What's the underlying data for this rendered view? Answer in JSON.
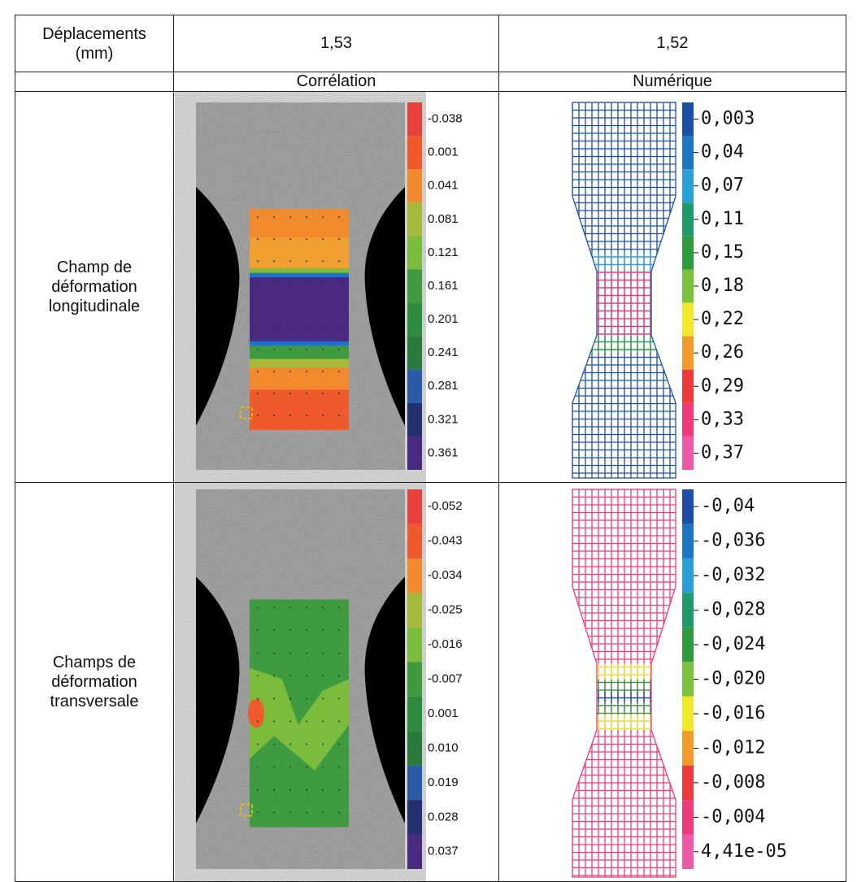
{
  "table": {
    "header": [
      "Déplacements (mm)",
      "1,53",
      "1,52"
    ],
    "subheader": [
      "Corrélation",
      "Numérique"
    ],
    "rows": [
      {
        "label": "Champ de déformation longitudinale",
        "correlation_legend": [
          "-0.038",
          "0.001",
          "0.041",
          "0.081",
          "0.121",
          "0.161",
          "0.201",
          "0.241",
          "0.281",
          "0.321",
          "0.361"
        ],
        "correlation_colors": [
          "#e8413c",
          "#ee5a2c",
          "#f08a2c",
          "#a8b83a",
          "#7cbc3c",
          "#3f9b3f",
          "#2e8a3e",
          "#2a7a3c",
          "#2a5aa8",
          "#22306e",
          "#4a2a80"
        ],
        "numeric_legend": [
          "0,003",
          "0,04",
          "0,07",
          "0,11",
          "0,15",
          "0,18",
          "0,22",
          "0,26",
          "0,29",
          "0,33",
          "0,37"
        ],
        "numeric_colors": [
          "#1d4fa8",
          "#1d76c4",
          "#28a0d8",
          "#1f9a6a",
          "#2e9a3a",
          "#7cc040",
          "#f2e82a",
          "#f29a2a",
          "#ee3a3a",
          "#ee3a7a",
          "#ee5aa8"
        ]
      },
      {
        "label": "Champs de déformation transversale",
        "correlation_legend": [
          "-0.052",
          "-0.043",
          "-0.034",
          "-0.025",
          "-0.016",
          "-0.007",
          "0.001",
          "0.010",
          "0.019",
          "0.028",
          "0.037"
        ],
        "correlation_colors": [
          "#e8413c",
          "#ee5a2c",
          "#f08a2c",
          "#a8b83a",
          "#7cbc3c",
          "#3f9b3f",
          "#2e8a3e",
          "#2a7a3c",
          "#2a5aa8",
          "#22306e",
          "#4a2a80"
        ],
        "numeric_legend": [
          "-0,04",
          "-0,036",
          "-0,032",
          "-0,028",
          "-0,024",
          "-0,020",
          "-0,016",
          "-0,012",
          "-0,008",
          "-0,004",
          "4,41e-05"
        ],
        "numeric_colors": [
          "#1d4fa8",
          "#1d76c4",
          "#28a0d8",
          "#1f9a6a",
          "#2e9a3a",
          "#7cc040",
          "#f2e82a",
          "#f29a2a",
          "#ee3a3a",
          "#ee3a7a",
          "#ee5aa8"
        ]
      }
    ]
  }
}
